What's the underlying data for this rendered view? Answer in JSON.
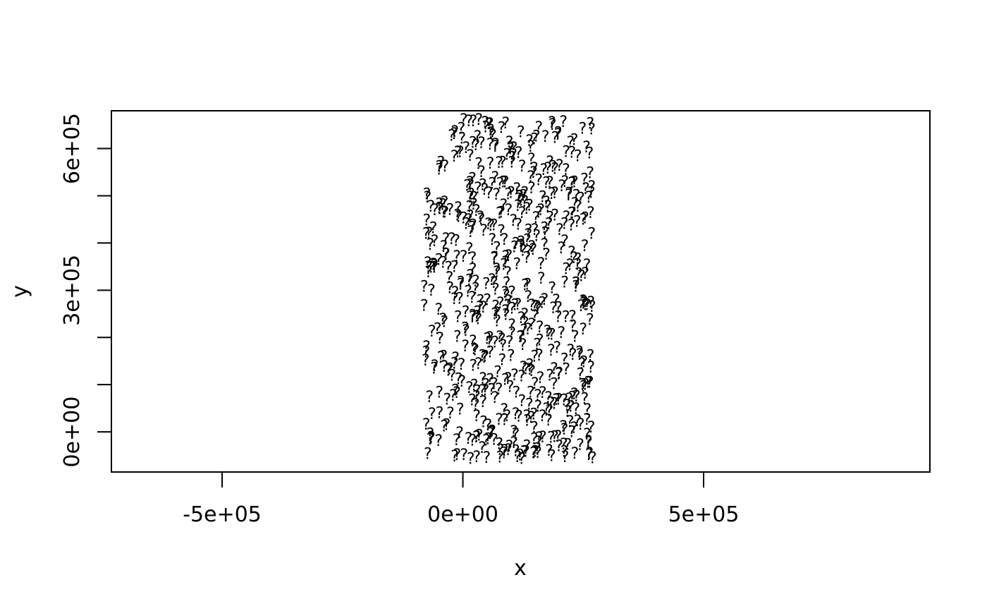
{
  "chart_data": {
    "type": "scatter",
    "title": "",
    "xlabel": "x",
    "ylabel": "y",
    "xlim": [
      -730000,
      970000
    ],
    "ylim": [
      -85000,
      680000
    ],
    "x_ticks": [
      {
        "value": -500000,
        "label": "-5e+05"
      },
      {
        "value": 0,
        "label": "0e+00"
      },
      {
        "value": 500000,
        "label": "5e+05"
      }
    ],
    "y_ticks": [
      {
        "value": 0,
        "label": "0e+00"
      },
      {
        "value": 100000,
        "label": ""
      },
      {
        "value": 200000,
        "label": ""
      },
      {
        "value": 300000,
        "label": "3e+05"
      },
      {
        "value": 400000,
        "label": ""
      },
      {
        "value": 500000,
        "label": ""
      },
      {
        "value": 600000,
        "label": "6e+05"
      }
    ],
    "marker": "?",
    "point_count": 600,
    "x_range": [
      -80000,
      270000
    ],
    "y_range": [
      -60000,
      660000
    ],
    "grid": false,
    "legend": false
  }
}
